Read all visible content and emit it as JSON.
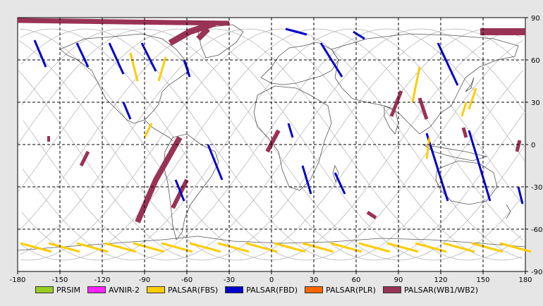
{
  "map": {
    "lon_ticks": [
      "-180",
      "-150",
      "-120",
      "-90",
      "-60",
      "-30",
      "0",
      "30",
      "60",
      "90",
      "120",
      "150",
      "180"
    ],
    "lat_ticks": [
      "90",
      "60",
      "30",
      "0",
      "-30",
      "-60",
      "-90"
    ]
  },
  "legend": [
    {
      "label": "PRSIM",
      "color": "#99cc22"
    },
    {
      "label": "AVNIR-2",
      "color": "#ff22ff"
    },
    {
      "label": "PALSAR(FBS)",
      "color": "#ffcc00"
    },
    {
      "label": "PALSAR(FBD)",
      "color": "#0000cc"
    },
    {
      "label": "PALSAR(PLR)",
      "color": "#ff6600"
    },
    {
      "label": "PALSAR(WB1/WB2)",
      "color": "#993355"
    }
  ],
  "colors": {
    "ocean": "#ffffff",
    "track": "#b0b0b0",
    "coast": "#555555",
    "grid": "#000000"
  }
}
